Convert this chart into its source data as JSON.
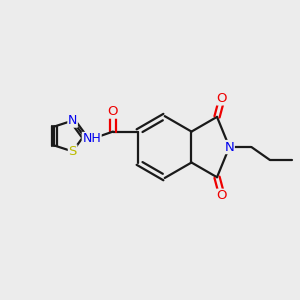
{
  "background_color": "#ececec",
  "bond_color": "#1a1a1a",
  "atom_colors": {
    "N": "#0000ee",
    "O": "#ee0000",
    "S": "#bbbb00",
    "C": "#1a1a1a"
  },
  "figsize": [
    3.0,
    3.0
  ],
  "dpi": 100,
  "bond_lw": 1.6
}
